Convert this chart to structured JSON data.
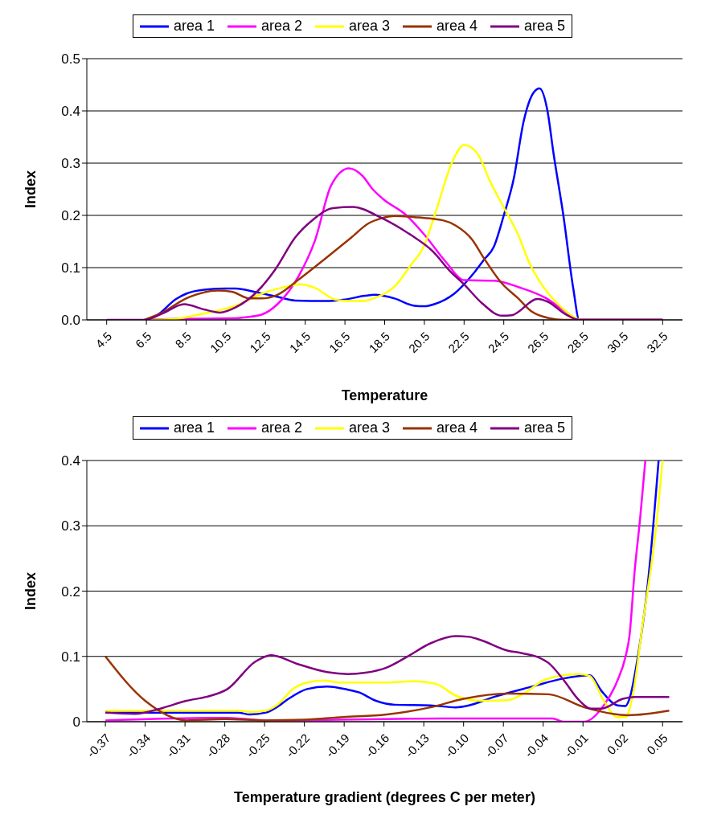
{
  "chart_data": [
    {
      "type": "line",
      "xlabel": "Temperature",
      "ylabel": "Index",
      "xlim": [
        3.5,
        33.5
      ],
      "xticks": [
        4.5,
        6.5,
        8.5,
        10.5,
        12.5,
        14.5,
        16.5,
        18.5,
        20.5,
        22.5,
        24.5,
        26.5,
        28.5,
        30.5,
        32.5
      ],
      "ylim": [
        0,
        0.5
      ],
      "yticks": [
        {
          "value": 0,
          "label": "0.0"
        },
        {
          "value": 0.1,
          "label": "0.1"
        },
        {
          "value": 0.2,
          "label": "0.2"
        },
        {
          "value": 0.3,
          "label": "0.3"
        },
        {
          "value": 0.4,
          "label": "0.4"
        },
        {
          "value": 0.5,
          "label": "0.5"
        }
      ],
      "grid": "y",
      "legend": "top",
      "marker": "none",
      "line_style": "solid",
      "series": [
        {
          "name": "area 1",
          "color": "#0000ff",
          "x": [
            6.5,
            7,
            8,
            8.5,
            9.5,
            10.5,
            11,
            12,
            13,
            14,
            15.5,
            16.5,
            17.5,
            18,
            19,
            20,
            20.5,
            21,
            22,
            23,
            23.5,
            24,
            24.5,
            25,
            25.5,
            26,
            26.3,
            26.7,
            27,
            27.5,
            28,
            28.3,
            32.5
          ],
          "values": [
            0,
            0.008,
            0.04,
            0.05,
            0.058,
            0.06,
            0.06,
            0.053,
            0.045,
            0.037,
            0.036,
            0.039,
            0.046,
            0.048,
            0.041,
            0.027,
            0.026,
            0.03,
            0.05,
            0.09,
            0.115,
            0.14,
            0.2,
            0.27,
            0.38,
            0.435,
            0.443,
            0.4,
            0.32,
            0.2,
            0.06,
            0,
            0
          ]
        },
        {
          "name": "area 2",
          "color": "#ff00ff",
          "x": [
            6.5,
            8,
            11,
            11.5,
            12.3,
            13.1,
            14.2,
            15,
            15.8,
            16.7,
            17.4,
            17.9,
            18.4,
            19.6,
            20.5,
            21.6,
            22.5,
            24,
            25.3,
            26.6,
            27.6,
            28.3,
            32.5
          ],
          "values": [
            0,
            0.002,
            0.003,
            0.005,
            0.01,
            0.03,
            0.086,
            0.153,
            0.257,
            0.29,
            0.275,
            0.25,
            0.232,
            0.2,
            0.163,
            0.11,
            0.076,
            0.075,
            0.062,
            0.042,
            0.016,
            0,
            0
          ]
        },
        {
          "name": "area 3",
          "color": "#ffff00",
          "x": [
            6.5,
            7.7,
            8.5,
            9.4,
            11,
            12.3,
            13.6,
            14.2,
            15,
            16,
            16.8,
            17.4,
            18,
            19,
            19.8,
            20.5,
            21.1,
            21.9,
            22.5,
            23.2,
            23.8,
            24.5,
            25.2,
            25.8,
            26.3,
            27.4,
            28.2,
            28.5,
            32.5
          ],
          "values": [
            0,
            0.001,
            0.005,
            0.012,
            0.027,
            0.05,
            0.064,
            0.068,
            0.061,
            0.039,
            0.036,
            0.036,
            0.042,
            0.064,
            0.104,
            0.143,
            0.21,
            0.302,
            0.335,
            0.317,
            0.266,
            0.215,
            0.165,
            0.108,
            0.074,
            0.024,
            0.002,
            0,
            0
          ]
        },
        {
          "name": "area 4",
          "color": "#993300",
          "x": [
            6.4,
            7.3,
            8.5,
            10.1,
            10.8,
            11.7,
            12.3,
            13.1,
            14.2,
            15.5,
            16.8,
            17.7,
            18.3,
            19,
            20.2,
            21.4,
            22.1,
            22.9,
            23.5,
            24.4,
            25.2,
            25.9,
            26.8,
            27.5,
            32.5
          ],
          "values": [
            0,
            0.014,
            0.041,
            0.056,
            0.054,
            0.041,
            0.041,
            0.048,
            0.078,
            0.117,
            0.157,
            0.185,
            0.194,
            0.199,
            0.196,
            0.191,
            0.18,
            0.154,
            0.118,
            0.07,
            0.042,
            0.016,
            0.003,
            0,
            0
          ]
        },
        {
          "name": "area 5",
          "color": "#800080",
          "x": [
            4.5,
            6.4,
            7.3,
            8.4,
            9.4,
            10.2,
            11,
            12.1,
            13,
            14,
            14.9,
            15.9,
            16.9,
            18.3,
            19.8,
            20.9,
            21.8,
            22.5,
            23.4,
            24.4,
            24.9,
            26.2,
            26.7,
            27.6,
            28.3,
            32.5
          ],
          "values": [
            0,
            0,
            0.012,
            0.03,
            0.02,
            0.014,
            0.024,
            0.055,
            0.097,
            0.158,
            0.192,
            0.214,
            0.216,
            0.196,
            0.163,
            0.132,
            0.093,
            0.068,
            0.032,
            0.008,
            0.009,
            0.04,
            0.035,
            0.011,
            0,
            0
          ]
        }
      ]
    },
    {
      "type": "line",
      "xlabel": "Temperature gradient (degrees C per meter)",
      "ylabel": "Index",
      "xlim": [
        -0.384,
        0.065
      ],
      "xticks": [
        -0.37,
        -0.34,
        -0.31,
        -0.28,
        -0.25,
        -0.22,
        -0.19,
        -0.16,
        -0.13,
        {
          "value": -0.1,
          "label": "-0.10"
        },
        -0.07,
        -0.04,
        -0.01,
        0.02,
        0.05
      ],
      "ylim": [
        0,
        0.4
      ],
      "yticks": [
        0,
        0.1,
        0.2,
        0.3,
        0.4
      ],
      "grid": "y",
      "legend": "top",
      "marker": "none",
      "line_style": "solid",
      "series": [
        {
          "name": "area 1",
          "color": "#0000ff",
          "x": [
            -0.37,
            -0.27,
            -0.261,
            -0.249,
            -0.241,
            -0.232,
            -0.218,
            -0.203,
            -0.187,
            -0.179,
            -0.166,
            -0.152,
            -0.125,
            -0.106,
            -0.096,
            -0.077,
            -0.048,
            -0.025,
            -0.005,
            0.004,
            0.016,
            0.022,
            0.025,
            0.031,
            0.039,
            0.047
          ],
          "values": [
            0.014,
            0.014,
            0.011,
            0.014,
            0.022,
            0.035,
            0.05,
            0.054,
            0.049,
            0.045,
            0.032,
            0.026,
            0.025,
            0.022,
            0.025,
            0.038,
            0.054,
            0.066,
            0.071,
            0.047,
            0.025,
            0.024,
            0.035,
            0.095,
            0.214,
            0.4
          ]
        },
        {
          "name": "area 2",
          "color": "#ff00ff",
          "x": [
            -0.37,
            -0.278,
            -0.249,
            -0.116,
            -0.033,
            -0.025,
            -0.009,
            0.006,
            0.016,
            0.022,
            0.025,
            0.029,
            0.033,
            0.037
          ],
          "values": [
            0.002,
            0.006,
            0.002,
            0.005,
            0.005,
            0,
            0,
            0.026,
            0.063,
            0.099,
            0.131,
            0.232,
            0.31,
            0.4
          ]
        },
        {
          "name": "area 3",
          "color": "#ffff00",
          "x": [
            -0.37,
            -0.27,
            -0.261,
            -0.249,
            -0.241,
            -0.228,
            -0.218,
            -0.205,
            -0.193,
            -0.158,
            -0.137,
            -0.121,
            -0.106,
            -0.087,
            -0.067,
            -0.054,
            -0.038,
            -0.013,
            -0.005,
            0.006,
            0.016,
            0.022,
            0.027,
            0.035,
            0.045,
            0.05
          ],
          "values": [
            0.017,
            0.017,
            0.015,
            0.017,
            0.025,
            0.051,
            0.06,
            0.063,
            0.06,
            0.06,
            0.062,
            0.058,
            0.04,
            0.032,
            0.033,
            0.044,
            0.065,
            0.073,
            0.07,
            0.031,
            0.007,
            0.007,
            0.035,
            0.15,
            0.296,
            0.4
          ]
        },
        {
          "name": "area 4",
          "color": "#993300",
          "x": [
            -0.37,
            -0.34,
            -0.309,
            -0.28,
            -0.25,
            -0.22,
            -0.191,
            -0.158,
            -0.125,
            -0.1,
            -0.067,
            -0.036,
            -0.009,
            0.024,
            0.055
          ],
          "values": [
            0.1,
            0.032,
            0.002,
            0.004,
            0.002,
            0.003,
            0.007,
            0.011,
            0.022,
            0.035,
            0.043,
            0.042,
            0.022,
            0.01,
            0.017
          ]
        },
        {
          "name": "area 5",
          "color": "#800080",
          "x": [
            -0.37,
            -0.348,
            -0.327,
            -0.309,
            -0.294,
            -0.278,
            -0.257,
            -0.245,
            -0.226,
            -0.203,
            -0.187,
            -0.174,
            -0.158,
            -0.143,
            -0.125,
            -0.106,
            -0.096,
            -0.087,
            -0.067,
            -0.056,
            -0.044,
            -0.036,
            -0.025,
            -0.013,
            -0.004,
            0.004,
            0.02,
            0.029,
            0.055
          ],
          "values": [
            0.014,
            0.012,
            0.021,
            0.032,
            0.038,
            0.05,
            0.092,
            0.102,
            0.089,
            0.076,
            0.073,
            0.075,
            0.083,
            0.099,
            0.12,
            0.131,
            0.13,
            0.125,
            0.109,
            0.105,
            0.099,
            0.09,
            0.065,
            0.033,
            0.02,
            0.02,
            0.035,
            0.038,
            0.038
          ]
        }
      ]
    }
  ]
}
